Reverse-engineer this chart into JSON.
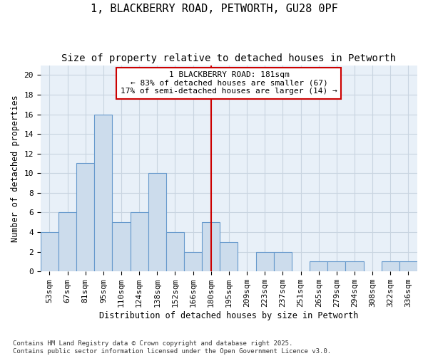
{
  "title": "1, BLACKBERRY ROAD, PETWORTH, GU28 0PF",
  "subtitle": "Size of property relative to detached houses in Petworth",
  "xlabel": "Distribution of detached houses by size in Petworth",
  "ylabel": "Number of detached properties",
  "categories": [
    "53sqm",
    "67sqm",
    "81sqm",
    "95sqm",
    "110sqm",
    "124sqm",
    "138sqm",
    "152sqm",
    "166sqm",
    "180sqm",
    "195sqm",
    "209sqm",
    "223sqm",
    "237sqm",
    "251sqm",
    "265sqm",
    "279sqm",
    "294sqm",
    "308sqm",
    "322sqm",
    "336sqm"
  ],
  "values": [
    4,
    6,
    11,
    16,
    5,
    6,
    10,
    4,
    2,
    5,
    3,
    0,
    2,
    2,
    0,
    1,
    1,
    1,
    0,
    1,
    1
  ],
  "bar_color": "#ccdcec",
  "bar_edge_color": "#6699cc",
  "vline_x_index": 9,
  "vline_color": "#cc0000",
  "annotation_text": "1 BLACKBERRY ROAD: 181sqm\n← 83% of detached houses are smaller (67)\n17% of semi-detached houses are larger (14) →",
  "annotation_box_color": "#cc0000",
  "ylim": [
    0,
    21
  ],
  "yticks": [
    0,
    2,
    4,
    6,
    8,
    10,
    12,
    14,
    16,
    18,
    20
  ],
  "grid_color": "#c8d4e0",
  "fig_background_color": "#ffffff",
  "ax_background_color": "#e8f0f8",
  "footer": "Contains HM Land Registry data © Crown copyright and database right 2025.\nContains public sector information licensed under the Open Government Licence v3.0.",
  "ann_fontsize": 8,
  "title_fontsize": 11,
  "subtitle_fontsize": 10,
  "axis_label_fontsize": 8.5,
  "tick_fontsize": 8
}
